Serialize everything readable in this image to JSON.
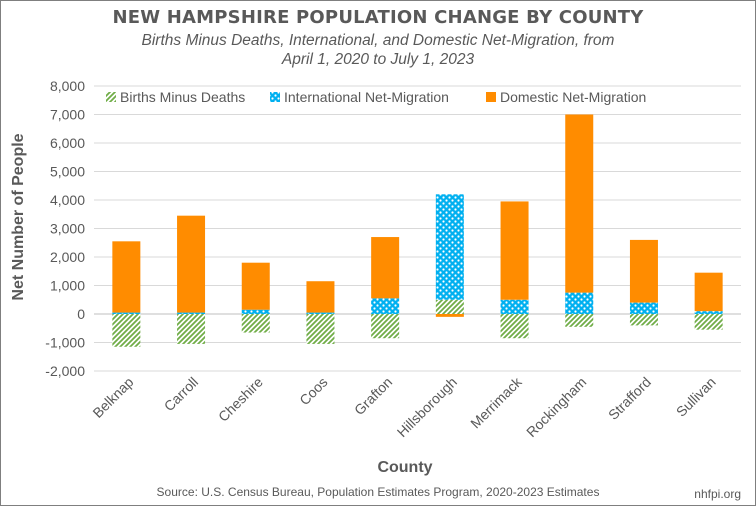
{
  "title": "NEW HAMPSHIRE POPULATION CHANGE BY COUNTY",
  "subtitle_line1": "Births Minus Deaths, International, and Domestic Net-Migration, from",
  "subtitle_line2": "April 1, 2020 to July 1, 2023",
  "source": "Source: U.S. Census Bureau, Population Estimates Program, 2020-2023 Estimates",
  "site": "nhfpi.org",
  "colors": {
    "births": "#70ad47",
    "international": "#00b0f0",
    "domestic": "#ff8c00"
  },
  "chart_data": {
    "type": "bar",
    "stacked": true,
    "title": "NEW HAMPSHIRE POPULATION CHANGE BY COUNTY",
    "xlabel": "County",
    "ylabel": "Net Number of People",
    "ylim": [
      -2000,
      8000
    ],
    "yticks": [
      -2000,
      -1000,
      0,
      1000,
      2000,
      3000,
      4000,
      5000,
      6000,
      7000,
      8000
    ],
    "ytick_labels": [
      "-2,000",
      "-1,000",
      "0",
      "1,000",
      "2,000",
      "3,000",
      "4,000",
      "5,000",
      "6,000",
      "7,000",
      "8,000"
    ],
    "legend_position": "top",
    "categories": [
      "Belknap",
      "Carroll",
      "Cheshire",
      "Coos",
      "Grafton",
      "Hillsborough",
      "Merrimack",
      "Rockingham",
      "Strafford",
      "Sullivan"
    ],
    "series": [
      {
        "name": "Births Minus Deaths",
        "values": [
          -1150,
          -1050,
          -650,
          -1050,
          -850,
          500,
          -850,
          -450,
          -400,
          -550
        ]
      },
      {
        "name": "International Net-Migration",
        "values": [
          50,
          50,
          150,
          50,
          550,
          3700,
          500,
          750,
          400,
          100
        ]
      },
      {
        "name": "Domestic Net-Migration",
        "values": [
          2500,
          3400,
          1650,
          1100,
          2150,
          -100,
          3450,
          6250,
          2200,
          1350
        ]
      }
    ]
  }
}
